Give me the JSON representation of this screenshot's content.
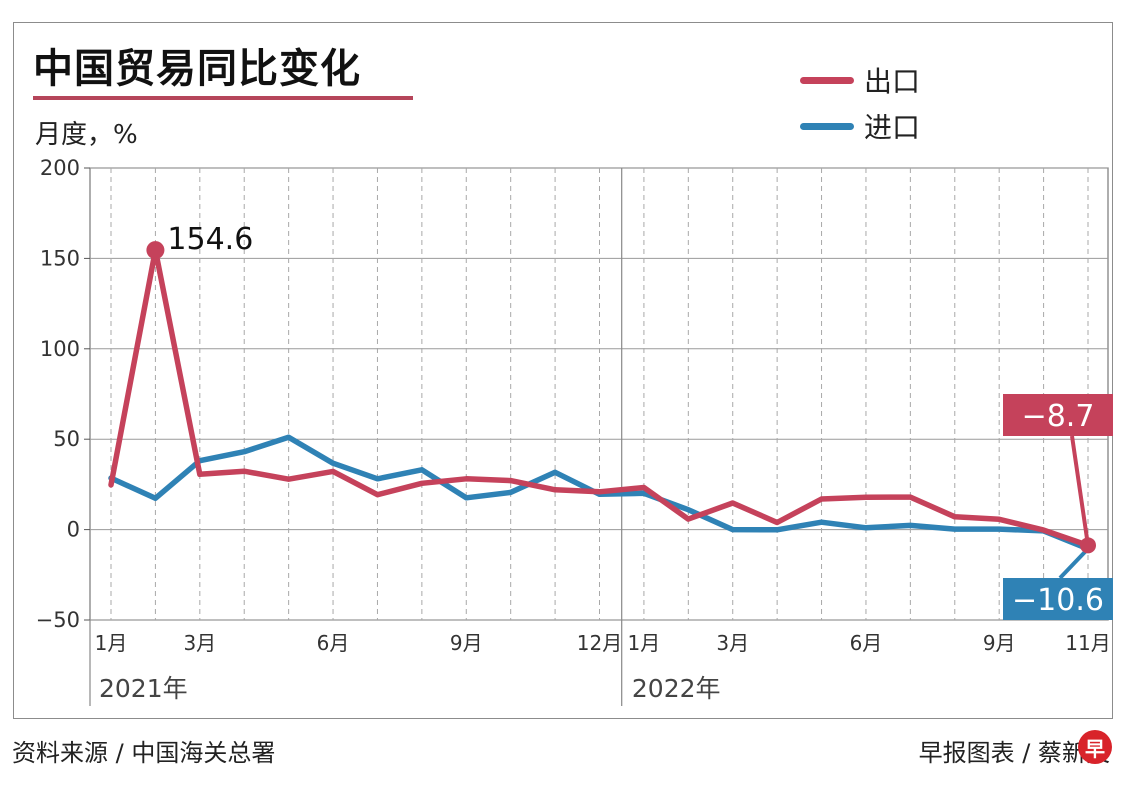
{
  "title": "中国贸易同比变化",
  "unit": "月度，%",
  "footer": {
    "source": "资料来源 / 中国海关总署",
    "credit": "早报图表 / 蔡新文",
    "logo": "早"
  },
  "colors": {
    "export": "#c5425b",
    "import": "#2f82b5",
    "accent": "#b5455a"
  },
  "chart_data": {
    "type": "line",
    "xlabel": "",
    "ylabel": "月度，%",
    "ylim": [
      -50,
      200
    ],
    "yticks": [
      "200",
      "150",
      "100",
      "50",
      "0",
      "−50"
    ],
    "ytick_values": [
      200,
      150,
      100,
      50,
      0,
      -50
    ],
    "x_tick_labels": [
      {
        "index": 0,
        "label": "1月"
      },
      {
        "index": 2,
        "label": "3月"
      },
      {
        "index": 5,
        "label": "6月"
      },
      {
        "index": 8,
        "label": "9月"
      },
      {
        "index": 11,
        "label": "12月"
      },
      {
        "index": 12,
        "label": "1月"
      },
      {
        "index": 14,
        "label": "3月"
      },
      {
        "index": 17,
        "label": "6月"
      },
      {
        "index": 20,
        "label": "9月"
      },
      {
        "index": 22,
        "label": "11月"
      }
    ],
    "year_labels": [
      {
        "index": 0,
        "label": "2021年"
      },
      {
        "index": 12,
        "label": "2022年"
      }
    ],
    "x": [
      "2021-01",
      "2021-02",
      "2021-03",
      "2021-04",
      "2021-05",
      "2021-06",
      "2021-07",
      "2021-08",
      "2021-09",
      "2021-10",
      "2021-11",
      "2021-12",
      "2022-01",
      "2022-02",
      "2022-03",
      "2022-04",
      "2022-05",
      "2022-06",
      "2022-07",
      "2022-08",
      "2022-09",
      "2022-10",
      "2022-11"
    ],
    "grid": true,
    "legend_position": "top-right",
    "series": [
      {
        "name": "出口",
        "color": "#c5425b",
        "values": [
          24.7,
          154.6,
          30.6,
          32.3,
          27.9,
          32.2,
          19.3,
          25.6,
          28.1,
          27.1,
          22,
          20.9,
          23.3,
          5.8,
          14.7,
          3.9,
          16.9,
          17.9,
          18,
          7.1,
          5.7,
          -0.3,
          -8.7
        ]
      },
      {
        "name": "进口",
        "color": "#2f82b5",
        "values": [
          28.5,
          17.3,
          38.1,
          43.1,
          51.1,
          36.7,
          28.1,
          33.1,
          17.6,
          20.6,
          31.7,
          19.5,
          20.1,
          11,
          0,
          -0.1,
          4.1,
          1,
          2.3,
          0.3,
          0.3,
          -0.7,
          -10.6
        ]
      }
    ],
    "annotations": [
      {
        "series": 0,
        "index": 1,
        "label": "154.6",
        "style": "plain"
      },
      {
        "series": 0,
        "index": 22,
        "label": "−8.7",
        "style": "box-export"
      },
      {
        "series": 1,
        "index": 22,
        "label": "−10.6",
        "style": "box-import"
      }
    ]
  }
}
